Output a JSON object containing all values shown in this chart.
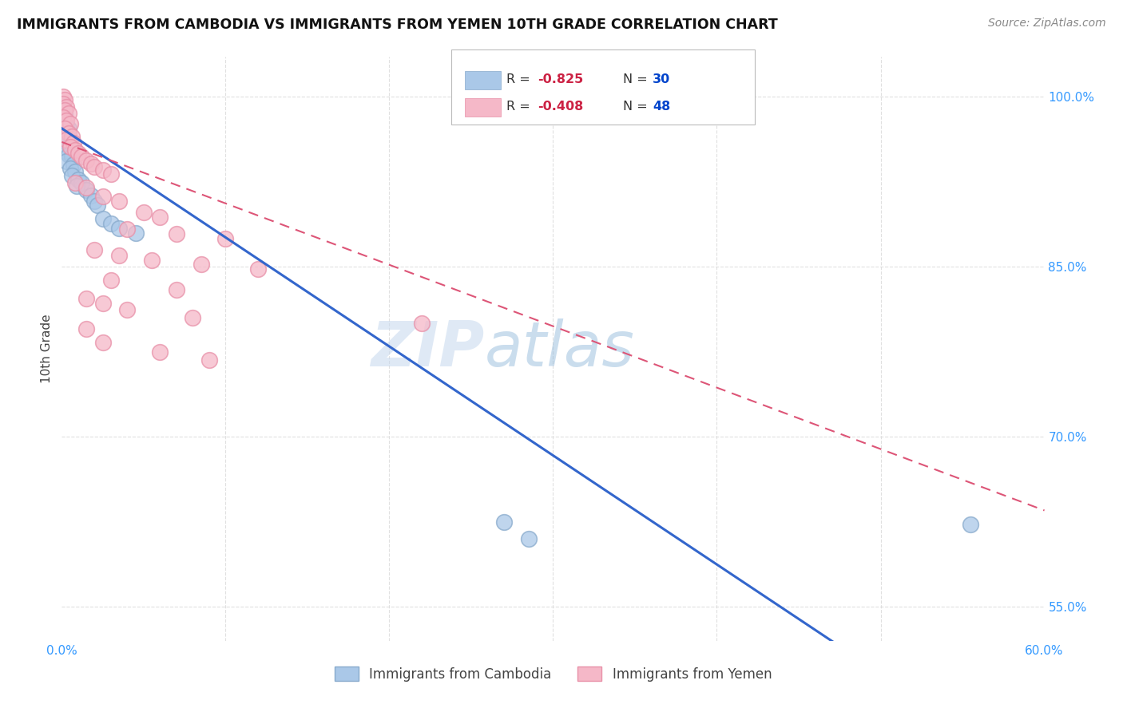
{
  "title": "IMMIGRANTS FROM CAMBODIA VS IMMIGRANTS FROM YEMEN 10TH GRADE CORRELATION CHART",
  "source": "Source: ZipAtlas.com",
  "ylabel": "10th Grade",
  "xlim": [
    0.0,
    0.6
  ],
  "ylim": [
    0.52,
    1.035
  ],
  "xticks": [
    0.0,
    0.1,
    0.2,
    0.3,
    0.4,
    0.5,
    0.6
  ],
  "xticklabels": [
    "0.0%",
    "",
    "",
    "",
    "",
    "",
    "60.0%"
  ],
  "yticks_right": [
    1.0,
    0.85,
    0.7,
    0.55
  ],
  "yticklabels_right": [
    "100.0%",
    "85.0%",
    "70.0%",
    "55.0%"
  ],
  "watermark": "ZIPAtlas",
  "watermark_color": "#c8ddf0",
  "background_color": "#ffffff",
  "grid_color": "#dddddd",
  "cambodia_color": "#aac8e8",
  "cambodia_edge": "#88aacc",
  "yemen_color": "#f5b8c8",
  "yemen_edge": "#e890a8",
  "blue_line_color": "#3366cc",
  "pink_line_color": "#dd5577",
  "cambodia_line": [
    [
      0.0,
      0.972
    ],
    [
      0.6,
      0.395
    ]
  ],
  "yemen_line": [
    [
      0.0,
      0.96
    ],
    [
      0.6,
      0.635
    ]
  ],
  "cambodia_points": [
    [
      0.001,
      0.993
    ],
    [
      0.002,
      0.985
    ],
    [
      0.001,
      0.978
    ],
    [
      0.003,
      0.975
    ],
    [
      0.004,
      0.972
    ],
    [
      0.002,
      0.969
    ],
    [
      0.001,
      0.964
    ],
    [
      0.003,
      0.96
    ],
    [
      0.005,
      0.957
    ],
    [
      0.002,
      0.952
    ],
    [
      0.004,
      0.949
    ],
    [
      0.006,
      0.947
    ],
    [
      0.003,
      0.943
    ],
    [
      0.007,
      0.94
    ],
    [
      0.005,
      0.937
    ],
    [
      0.008,
      0.934
    ],
    [
      0.006,
      0.93
    ],
    [
      0.01,
      0.927
    ],
    [
      0.012,
      0.924
    ],
    [
      0.009,
      0.921
    ],
    [
      0.015,
      0.918
    ],
    [
      0.018,
      0.913
    ],
    [
      0.02,
      0.908
    ],
    [
      0.022,
      0.904
    ],
    [
      0.025,
      0.892
    ],
    [
      0.03,
      0.888
    ],
    [
      0.035,
      0.884
    ],
    [
      0.045,
      0.88
    ],
    [
      0.27,
      0.625
    ],
    [
      0.285,
      0.61
    ],
    [
      0.555,
      0.623
    ]
  ],
  "yemen_points": [
    [
      0.001,
      1.0
    ],
    [
      0.002,
      0.997
    ],
    [
      0.001,
      0.994
    ],
    [
      0.003,
      0.991
    ],
    [
      0.002,
      0.988
    ],
    [
      0.004,
      0.985
    ],
    [
      0.001,
      0.982
    ],
    [
      0.003,
      0.979
    ],
    [
      0.005,
      0.976
    ],
    [
      0.002,
      0.972
    ],
    [
      0.004,
      0.968
    ],
    [
      0.006,
      0.965
    ],
    [
      0.003,
      0.962
    ],
    [
      0.007,
      0.959
    ],
    [
      0.005,
      0.956
    ],
    [
      0.008,
      0.953
    ],
    [
      0.01,
      0.95
    ],
    [
      0.012,
      0.947
    ],
    [
      0.015,
      0.944
    ],
    [
      0.018,
      0.941
    ],
    [
      0.02,
      0.938
    ],
    [
      0.025,
      0.935
    ],
    [
      0.03,
      0.932
    ],
    [
      0.008,
      0.924
    ],
    [
      0.015,
      0.92
    ],
    [
      0.025,
      0.912
    ],
    [
      0.035,
      0.908
    ],
    [
      0.05,
      0.898
    ],
    [
      0.06,
      0.894
    ],
    [
      0.04,
      0.883
    ],
    [
      0.07,
      0.879
    ],
    [
      0.1,
      0.875
    ],
    [
      0.02,
      0.865
    ],
    [
      0.035,
      0.86
    ],
    [
      0.055,
      0.856
    ],
    [
      0.085,
      0.852
    ],
    [
      0.12,
      0.848
    ],
    [
      0.03,
      0.838
    ],
    [
      0.07,
      0.83
    ],
    [
      0.015,
      0.822
    ],
    [
      0.025,
      0.818
    ],
    [
      0.04,
      0.812
    ],
    [
      0.08,
      0.805
    ],
    [
      0.015,
      0.795
    ],
    [
      0.22,
      0.8
    ],
    [
      0.025,
      0.783
    ],
    [
      0.06,
      0.775
    ],
    [
      0.09,
      0.768
    ]
  ]
}
